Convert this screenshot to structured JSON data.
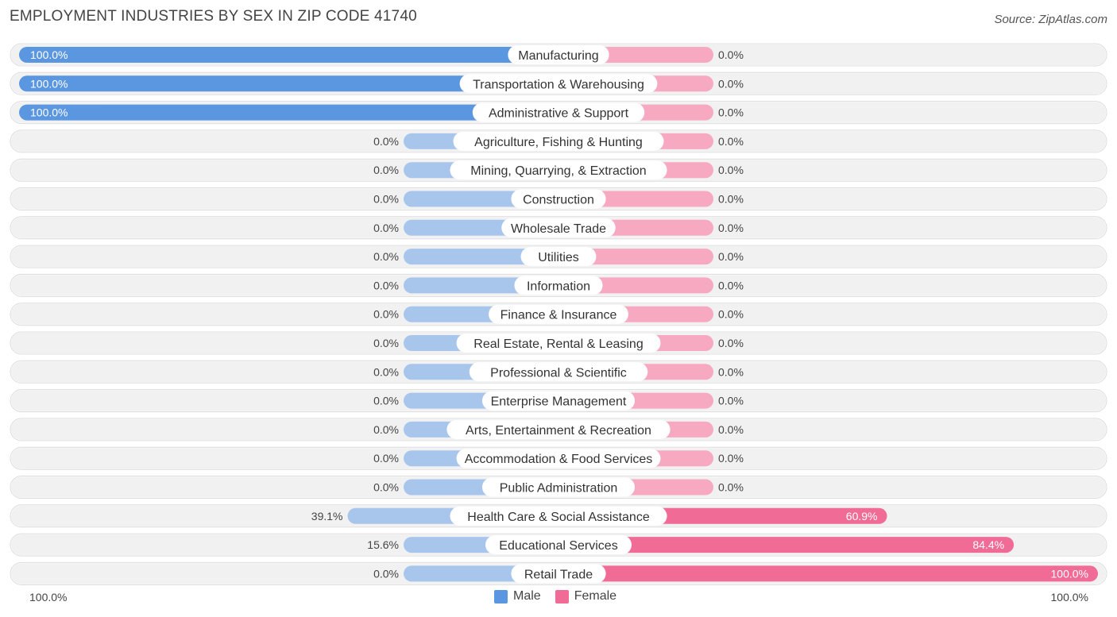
{
  "header": {
    "title": "EMPLOYMENT INDUSTRIES BY SEX IN ZIP CODE 41740",
    "source": "Source: ZipAtlas.com"
  },
  "legend": {
    "male": "Male",
    "female": "Female"
  },
  "axis": {
    "left_label": "100.0%",
    "right_label": "100.0%"
  },
  "colors": {
    "male_strong": "#5b97e0",
    "male_light": "#a8c6ec",
    "female_strong": "#f06b95",
    "female_light": "#f7a9c2",
    "row_bg": "#f1f1f1",
    "row_border": "#dcdcdc"
  },
  "chart_data": {
    "type": "bar",
    "orientation": "horizontal-diverging",
    "title": "EMPLOYMENT INDUSTRIES BY SEX IN ZIP CODE 41740",
    "xlim": [
      -100,
      100
    ],
    "categories": [
      "Manufacturing",
      "Transportation & Warehousing",
      "Administrative & Support",
      "Agriculture, Fishing & Hunting",
      "Mining, Quarrying, & Extraction",
      "Construction",
      "Wholesale Trade",
      "Utilities",
      "Information",
      "Finance & Insurance",
      "Real Estate, Rental & Leasing",
      "Professional & Scientific",
      "Enterprise Management",
      "Arts, Entertainment & Recreation",
      "Accommodation & Food Services",
      "Public Administration",
      "Health Care & Social Assistance",
      "Educational Services",
      "Retail Trade"
    ],
    "series": [
      {
        "name": "Male",
        "values": [
          100.0,
          100.0,
          100.0,
          0.0,
          0.0,
          0.0,
          0.0,
          0.0,
          0.0,
          0.0,
          0.0,
          0.0,
          0.0,
          0.0,
          0.0,
          0.0,
          39.1,
          15.6,
          0.0
        ],
        "labels": [
          "100.0%",
          "100.0%",
          "100.0%",
          "0.0%",
          "0.0%",
          "0.0%",
          "0.0%",
          "0.0%",
          "0.0%",
          "0.0%",
          "0.0%",
          "0.0%",
          "0.0%",
          "0.0%",
          "0.0%",
          "0.0%",
          "39.1%",
          "15.6%",
          "0.0%"
        ]
      },
      {
        "name": "Female",
        "values": [
          0.0,
          0.0,
          0.0,
          0.0,
          0.0,
          0.0,
          0.0,
          0.0,
          0.0,
          0.0,
          0.0,
          0.0,
          0.0,
          0.0,
          0.0,
          0.0,
          60.9,
          84.4,
          100.0
        ],
        "labels": [
          "0.0%",
          "0.0%",
          "0.0%",
          "0.0%",
          "0.0%",
          "0.0%",
          "0.0%",
          "0.0%",
          "0.0%",
          "0.0%",
          "0.0%",
          "0.0%",
          "0.0%",
          "0.0%",
          "0.0%",
          "0.0%",
          "60.9%",
          "84.4%",
          "100.0%"
        ]
      }
    ]
  }
}
